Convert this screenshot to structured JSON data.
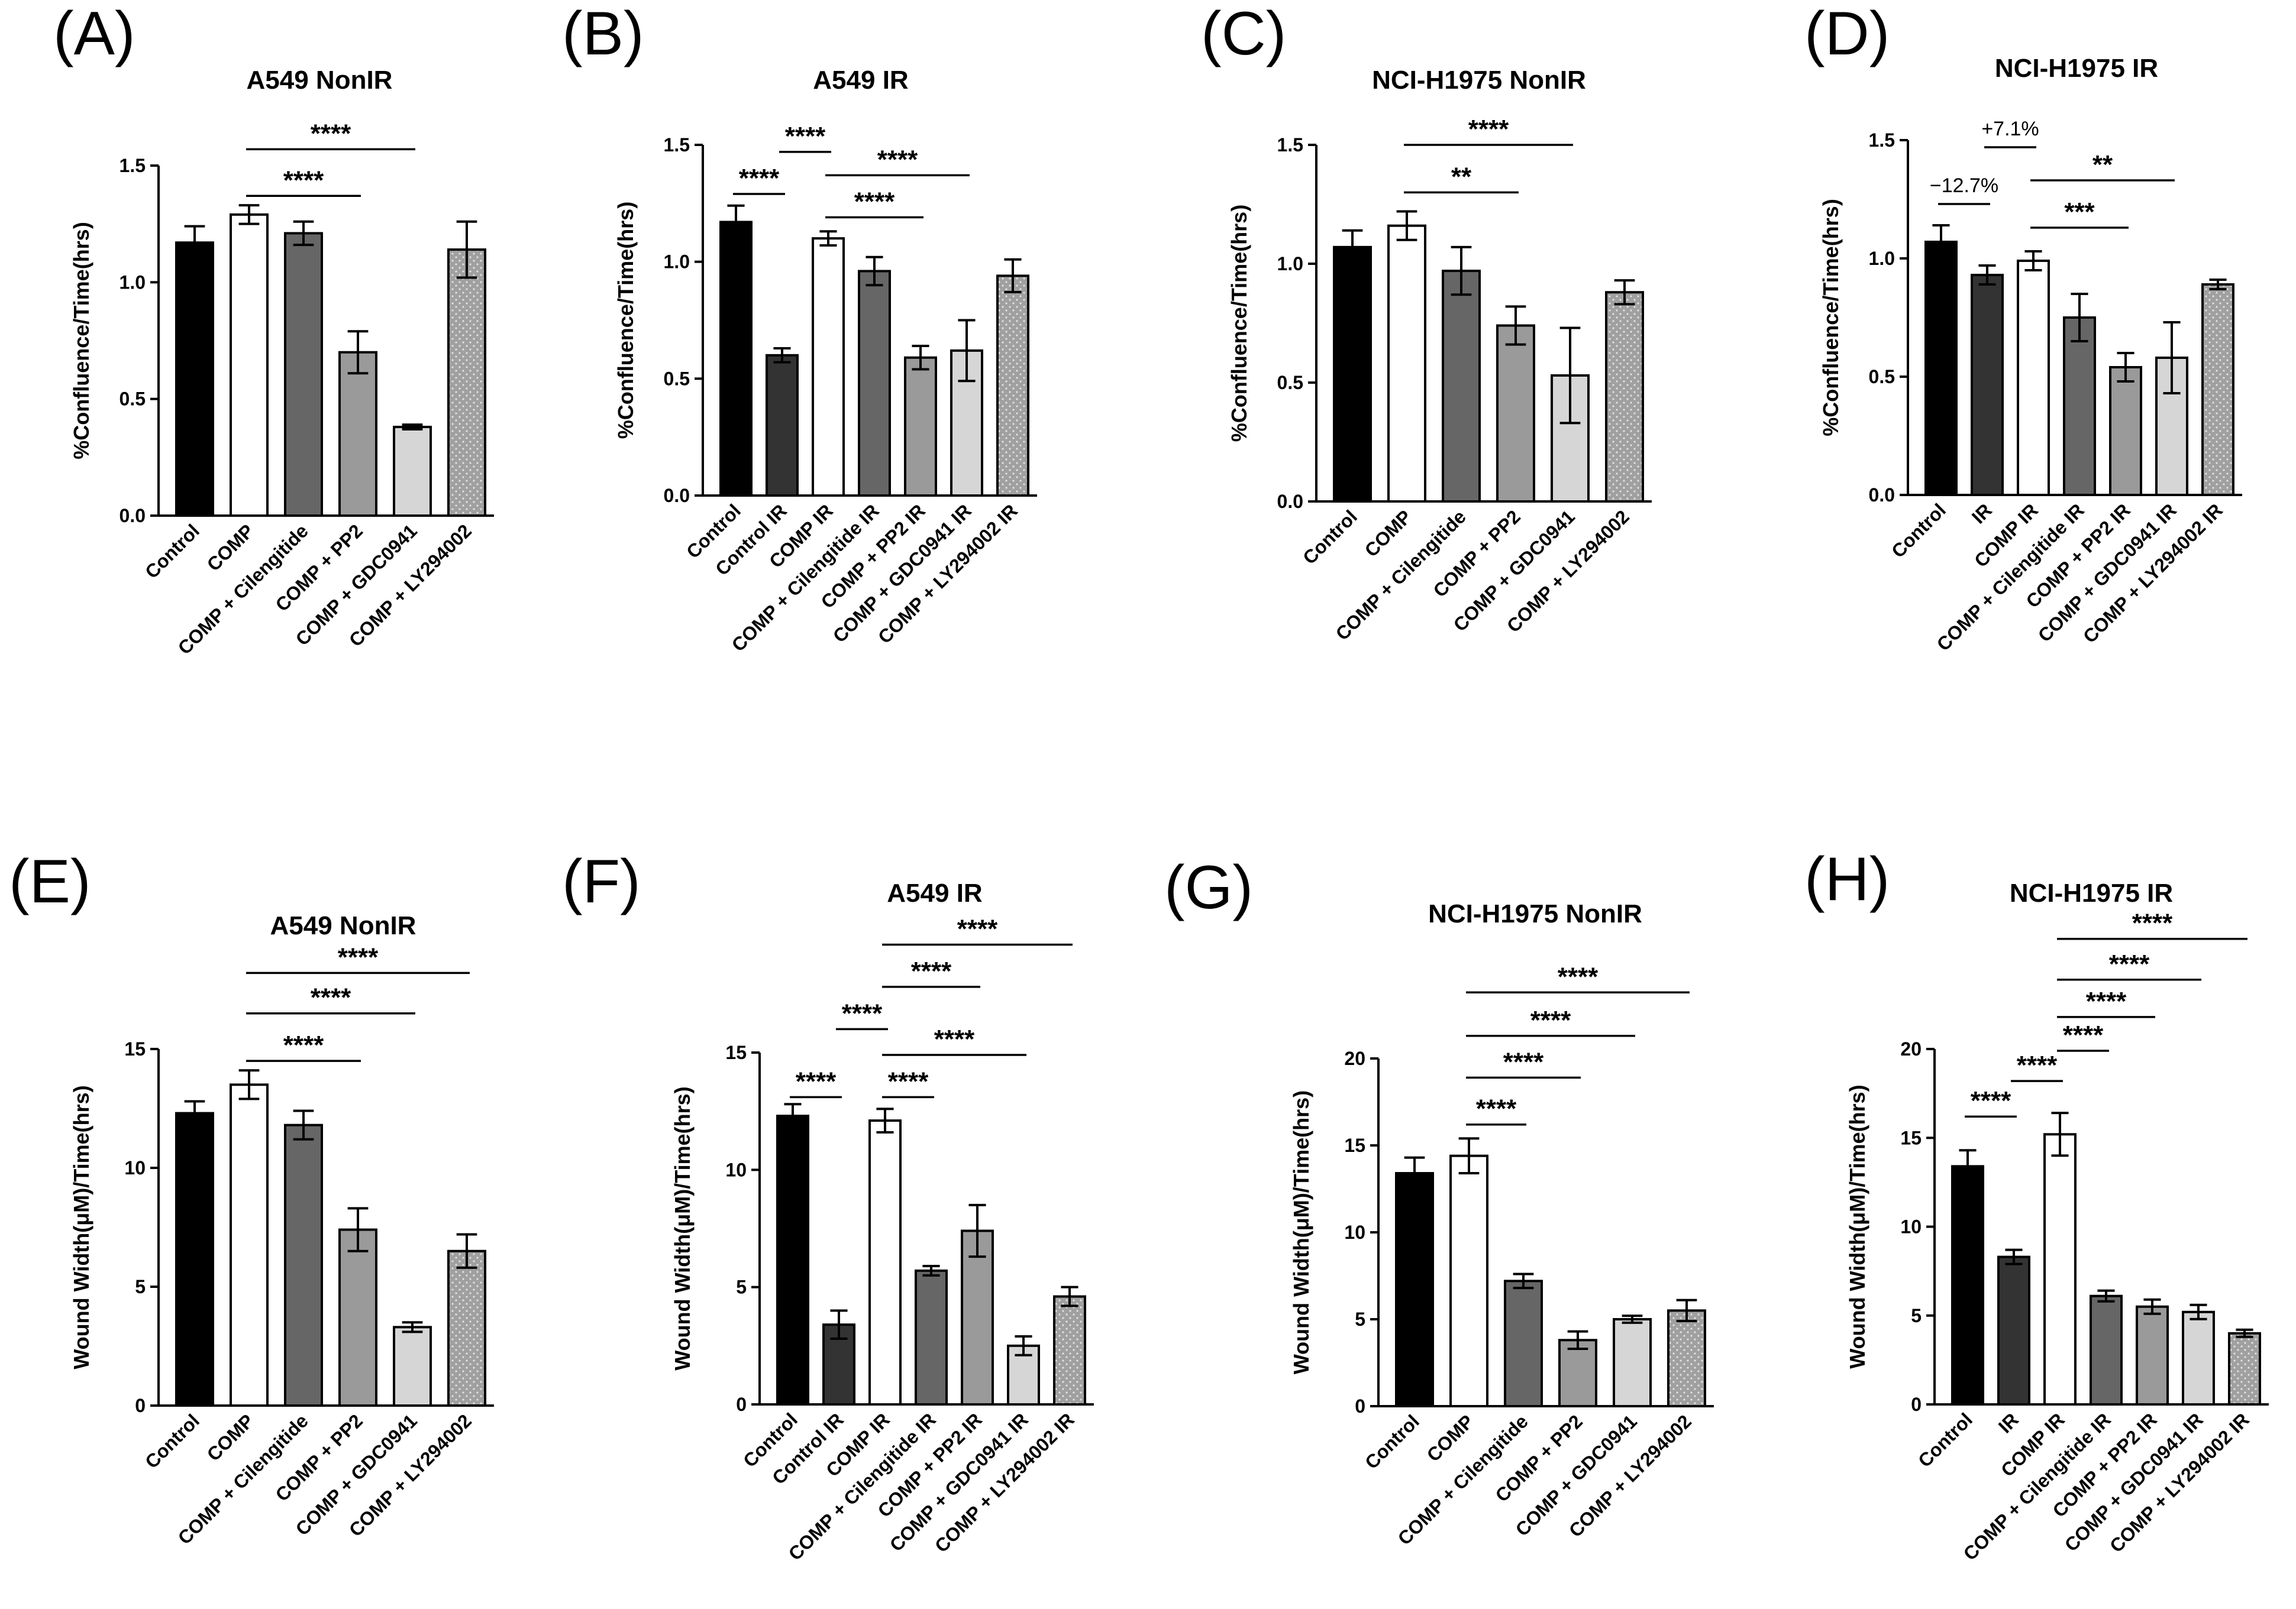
{
  "chart_data": [
    {
      "type": "bar",
      "letter": "(A)",
      "title": "A549 NonIR",
      "ylabel": "%Confluence/Time(hrs)",
      "ylim": [
        0,
        1.5
      ],
      "yticks": [
        "0.0",
        "0.5",
        "1.0",
        "1.5"
      ],
      "categories": [
        "Control",
        "COMP",
        "COMP + Cilengitide",
        "COMP + PP2",
        "COMP + GDC0941",
        "COMP + LY294002"
      ],
      "values": [
        1.17,
        1.29,
        1.21,
        0.7,
        0.38,
        1.14
      ],
      "errors": [
        0.07,
        0.04,
        0.05,
        0.09,
        0.01,
        0.12
      ],
      "styles": [
        "black",
        "white",
        "dark",
        "mid",
        "light",
        "dotted"
      ],
      "brackets": [
        {
          "from": 1,
          "to": 3,
          "y": 1.37,
          "label": "****"
        },
        {
          "from": 1,
          "to": 4,
          "y": 1.57,
          "label": "****"
        }
      ]
    },
    {
      "type": "bar",
      "letter": "(B)",
      "title": "A549 IR",
      "ylabel": "%Confluence/Time(hrs)",
      "ylim": [
        0,
        1.5
      ],
      "yticks": [
        "0.0",
        "0.5",
        "1.0",
        "1.5"
      ],
      "categories": [
        "Control",
        "Control IR",
        "COMP IR",
        "COMP + Cilengitide IR",
        "COMP + PP2 IR",
        "COMP + GDC0941 IR",
        "COMP + LY294002 IR"
      ],
      "values": [
        1.17,
        0.6,
        1.1,
        0.96,
        0.59,
        0.62,
        0.94
      ],
      "errors": [
        0.07,
        0.03,
        0.03,
        0.06,
        0.05,
        0.13,
        0.07
      ],
      "styles": [
        "black",
        "darkest",
        "white",
        "dark",
        "mid",
        "light",
        "dotted"
      ],
      "brackets": [
        {
          "from": 0,
          "to": 1,
          "y": 1.29,
          "label": "****"
        },
        {
          "from": 1,
          "to": 2,
          "y": 1.47,
          "label": "****"
        },
        {
          "from": 2,
          "to": 4,
          "y": 1.19,
          "label": "****"
        },
        {
          "from": 2,
          "to": 5,
          "y": 1.37,
          "label": "****"
        }
      ]
    },
    {
      "type": "bar",
      "letter": "(C)",
      "title": "NCI-H1975 NonIR",
      "ylabel": "%Confluence/Time(hrs)",
      "ylim": [
        0,
        1.5
      ],
      "yticks": [
        "0.0",
        "0.5",
        "1.0",
        "1.5"
      ],
      "categories": [
        "Control",
        "COMP",
        "COMP + Cilengitide",
        "COMP + PP2",
        "COMP + GDC0941",
        "COMP + LY294002"
      ],
      "values": [
        1.07,
        1.16,
        0.97,
        0.74,
        0.53,
        0.88
      ],
      "errors": [
        0.07,
        0.06,
        0.1,
        0.08,
        0.2,
        0.05
      ],
      "styles": [
        "black",
        "white",
        "dark",
        "mid",
        "light",
        "dotted"
      ],
      "brackets": [
        {
          "from": 1,
          "to": 3,
          "y": 1.3,
          "label": "**"
        },
        {
          "from": 1,
          "to": 4,
          "y": 1.5,
          "label": "****"
        }
      ]
    },
    {
      "type": "bar",
      "letter": "(D)",
      "title": "NCI-H1975 IR",
      "ylabel": "%Confluence/Time(hrs)",
      "ylim": [
        0,
        1.5
      ],
      "yticks": [
        "0.0",
        "0.5",
        "1.0",
        "1.5"
      ],
      "categories": [
        "Control",
        "IR",
        "COMP IR",
        "COMP + Cilengitide IR",
        "COMP + PP2 IR",
        "COMP + GDC0941 IR",
        "COMP + LY294002 IR"
      ],
      "values": [
        1.07,
        0.93,
        0.99,
        0.75,
        0.54,
        0.58,
        0.89
      ],
      "errors": [
        0.07,
        0.04,
        0.04,
        0.1,
        0.06,
        0.15,
        0.02
      ],
      "styles": [
        "black",
        "darkest",
        "white",
        "dark",
        "mid",
        "light",
        "dotted"
      ],
      "brackets": [
        {
          "from": 2,
          "to": 4,
          "y": 1.13,
          "label": "***"
        },
        {
          "from": 2,
          "to": 5,
          "y": 1.33,
          "label": "**"
        }
      ],
      "annotations": [
        {
          "from": 0,
          "to": 1,
          "y": 1.23,
          "label": "−12.7%"
        },
        {
          "from": 1,
          "to": 2,
          "y": 1.47,
          "label": "+7.1%"
        }
      ]
    },
    {
      "type": "bar",
      "letter": "(E)",
      "title": "A549 NonIR",
      "ylabel": "Wound Width(μM)/Time(hrs)",
      "ylim": [
        0,
        15
      ],
      "yticks": [
        "0",
        "5",
        "10",
        "15"
      ],
      "categories": [
        "Control",
        "COMP",
        "COMP + Cilengitide",
        "COMP + PP2",
        "COMP + GDC0941",
        "COMP + LY294002"
      ],
      "values": [
        12.3,
        13.5,
        11.8,
        7.4,
        3.3,
        6.5
      ],
      "errors": [
        0.5,
        0.6,
        0.6,
        0.9,
        0.2,
        0.7
      ],
      "styles": [
        "black",
        "white",
        "dark",
        "mid",
        "light",
        "dotted"
      ],
      "brackets": [
        {
          "from": 1,
          "to": 3,
          "y": 14.5,
          "label": "****"
        },
        {
          "from": 1,
          "to": 4,
          "y": 16.5,
          "label": "****"
        },
        {
          "from": 1,
          "to": 5,
          "y": 18.2,
          "label": "****"
        }
      ]
    },
    {
      "type": "bar",
      "letter": "(F)",
      "title": "A549 IR",
      "ylabel": "Wound Width(μM)/Time(hrs)",
      "ylim": [
        0,
        15
      ],
      "yticks": [
        "0",
        "5",
        "10",
        "15"
      ],
      "categories": [
        "Control",
        "Control IR",
        "COMP IR",
        "COMP + Cilengitide IR",
        "COMP + PP2 IR",
        "COMP + GDC0941 IR",
        "COMP + LY294002 IR"
      ],
      "values": [
        12.3,
        3.4,
        12.1,
        5.7,
        7.4,
        2.5,
        4.6
      ],
      "errors": [
        0.5,
        0.6,
        0.5,
        0.2,
        1.1,
        0.4,
        0.4
      ],
      "styles": [
        "black",
        "darkest",
        "white",
        "dark",
        "mid",
        "light",
        "dotted"
      ],
      "brackets": [
        {
          "from": 0,
          "to": 1,
          "y": 13.1,
          "label": "****"
        },
        {
          "from": 1,
          "to": 2,
          "y": 16.0,
          "label": "****"
        },
        {
          "from": 2,
          "to": 3,
          "y": 13.1,
          "label": "****"
        },
        {
          "from": 2,
          "to": 5,
          "y": 14.9,
          "label": "****"
        },
        {
          "from": 2,
          "to": 4,
          "y": 17.8,
          "label": "****"
        },
        {
          "from": 2,
          "to": 6,
          "y": 19.6,
          "label": "****"
        }
      ]
    },
    {
      "type": "bar",
      "letter": "(G)",
      "title": "NCI-H1975 NonIR",
      "ylabel": "Wound Width(μM)/Time(hrs)",
      "ylim": [
        0,
        20
      ],
      "yticks": [
        "0",
        "5",
        "10",
        "15",
        "20"
      ],
      "categories": [
        "Control",
        "COMP",
        "COMP + Cilengitide",
        "COMP + PP2",
        "COMP + GDC0941",
        "COMP + LY294002"
      ],
      "values": [
        13.4,
        14.4,
        7.2,
        3.8,
        5.0,
        5.5
      ],
      "errors": [
        0.9,
        1.0,
        0.4,
        0.5,
        0.2,
        0.6
      ],
      "styles": [
        "black",
        "white",
        "dark",
        "mid",
        "light",
        "dotted"
      ],
      "brackets": [
        {
          "from": 1,
          "to": 2,
          "y": 16.2,
          "label": "****"
        },
        {
          "from": 1,
          "to": 3,
          "y": 18.9,
          "label": "****"
        },
        {
          "from": 1,
          "to": 4,
          "y": 21.3,
          "label": "****"
        },
        {
          "from": 1,
          "to": 5,
          "y": 23.8,
          "label": "****"
        }
      ]
    },
    {
      "type": "bar",
      "letter": "(H)",
      "title": "NCI-H1975 IR",
      "ylabel": "Wound Width(μM)/Time(hrs)",
      "ylim": [
        0,
        20
      ],
      "yticks": [
        "0",
        "5",
        "10",
        "15",
        "20"
      ],
      "categories": [
        "Control",
        "IR",
        "COMP IR",
        "COMP + Cilengitide IR",
        "COMP + PP2 IR",
        "COMP + GDC0941 IR",
        "COMP + LY294002 IR"
      ],
      "values": [
        13.4,
        8.3,
        15.2,
        6.1,
        5.5,
        5.2,
        4.0
      ],
      "errors": [
        0.9,
        0.4,
        1.2,
        0.3,
        0.4,
        0.4,
        0.2
      ],
      "styles": [
        "black",
        "darkest",
        "white",
        "dark",
        "mid",
        "light",
        "dotted"
      ],
      "brackets": [
        {
          "from": 0,
          "to": 1,
          "y": 16.2,
          "label": "****"
        },
        {
          "from": 1,
          "to": 2,
          "y": 18.2,
          "label": "****"
        },
        {
          "from": 2,
          "to": 3,
          "y": 19.9,
          "label": "****"
        },
        {
          "from": 2,
          "to": 4,
          "y": 21.8,
          "label": "****"
        },
        {
          "from": 2,
          "to": 5,
          "y": 23.9,
          "label": "****"
        },
        {
          "from": 2,
          "to": 6,
          "y": 26.2,
          "label": "****"
        }
      ]
    }
  ],
  "fill_colors": {
    "black": "#000000",
    "darkest": "#333333",
    "white": "#ffffff",
    "dark": "#666666",
    "mid": "#9a9a9a",
    "light": "#d6d6d6",
    "dotted": "#a0a0a0"
  }
}
